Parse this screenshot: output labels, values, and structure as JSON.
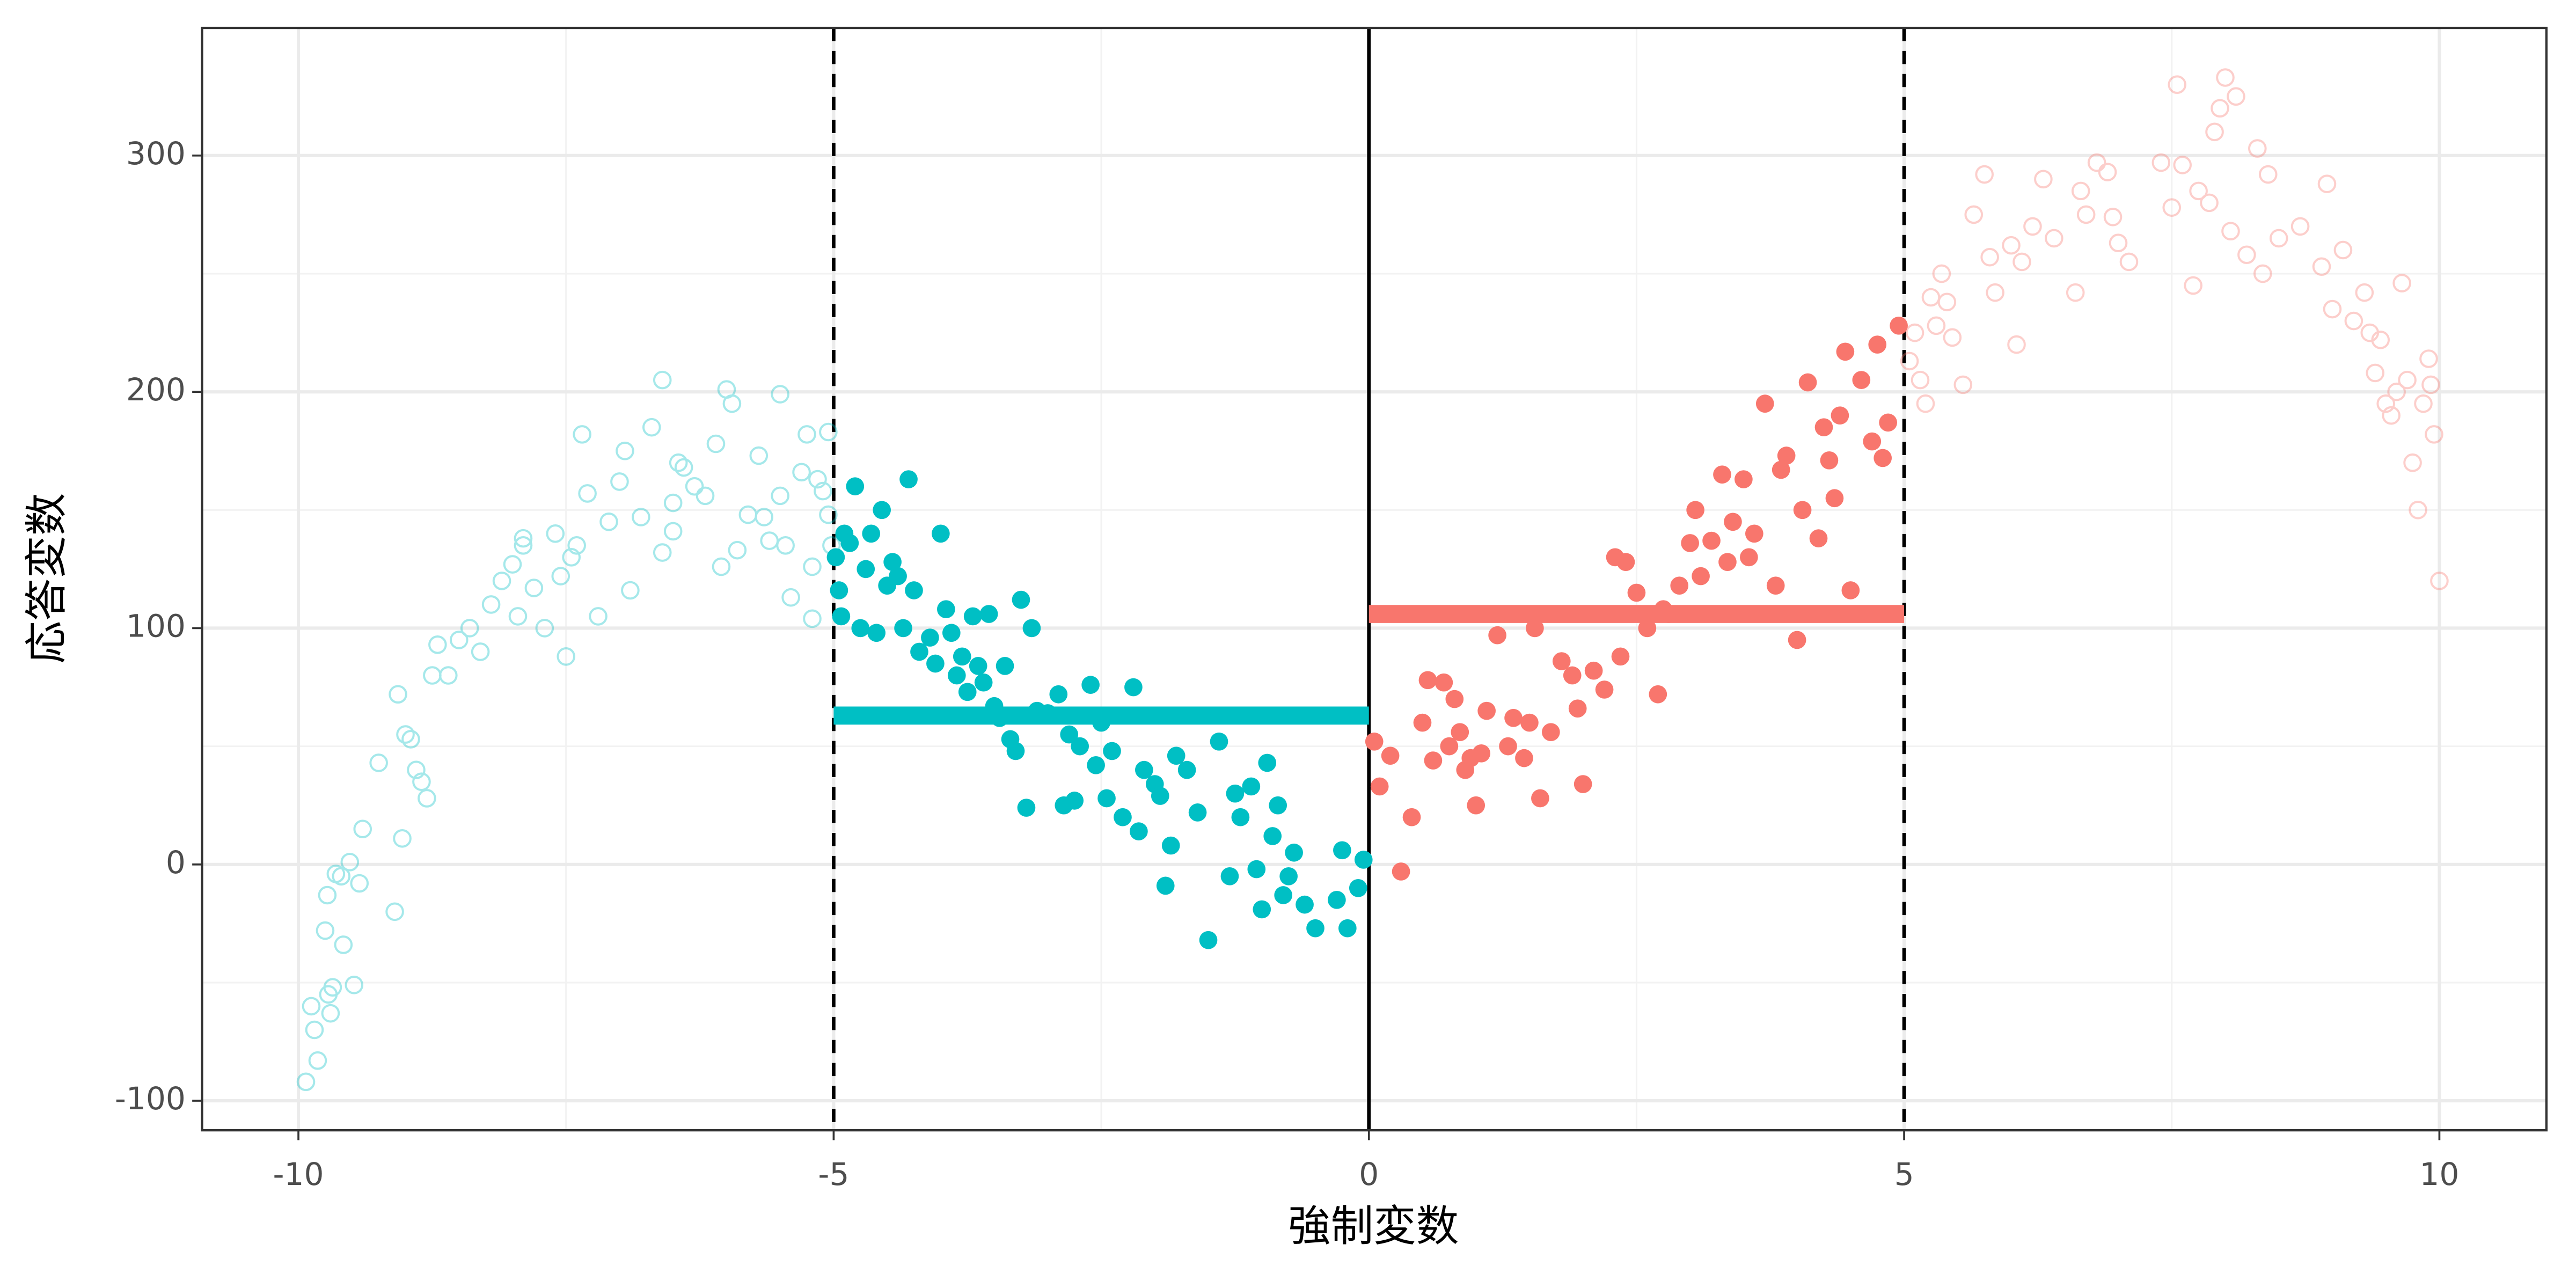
{
  "chart_data": {
    "type": "scatter",
    "x_label": "強制変数",
    "y_label": "応答変数",
    "xlim": [
      -10.9,
      11
    ],
    "ylim": [
      -112.5,
      354
    ],
    "xticks": [
      -10,
      -5,
      0,
      5,
      10
    ],
    "yticks": [
      -100,
      0,
      100,
      200,
      300
    ],
    "minor_xticks": [
      -7.5,
      -2.5,
      2.5,
      7.5
    ],
    "minor_yticks": [
      -50,
      50,
      150,
      250
    ],
    "grid": true,
    "series": [
      {
        "color": "#00BFC4",
        "marker": "open",
        "alpha": 0.35,
        "x": [
          -9.93,
          -9.88,
          -9.85,
          -9.82,
          -9.75,
          -9.73,
          -9.72,
          -9.7,
          -9.68,
          -9.65,
          -9.6,
          -9.58,
          -9.52,
          -9.48,
          -9.43,
          -9.4,
          -9.25,
          -9.1,
          -9.07,
          -9.03,
          -9.0,
          -8.95,
          -8.9,
          -8.85,
          -8.8,
          -8.75,
          -8.7,
          -8.6,
          -8.5,
          -8.4,
          -8.3,
          -8.2,
          -8.1,
          -8.0,
          -7.95,
          -7.9,
          -7.8,
          -7.7,
          -7.6,
          -7.55,
          -7.5,
          -7.45,
          -7.4,
          -7.35,
          -7.3,
          -7.2,
          -7.1,
          -7.0,
          -6.95,
          -6.9,
          -6.8,
          -6.7,
          -6.6,
          -6.5,
          -6.45,
          -6.4,
          -6.3,
          -6.2,
          -6.1,
          -6.0,
          -5.95,
          -5.9,
          -5.8,
          -5.7,
          -5.6,
          -5.5,
          -5.4,
          -5.3,
          -5.25,
          -5.2,
          -5.15,
          -5.05,
          -5.02,
          -5.5,
          -5.65,
          -5.45,
          -5.2,
          -5.1,
          -5.05,
          -6.5,
          -6.05,
          -7.9,
          -6.6
        ],
        "values": [
          -92,
          -60,
          -70,
          -83,
          -28,
          -13,
          -55,
          -63,
          -52,
          -4,
          -5,
          -34,
          1,
          -51,
          -8,
          15,
          43,
          -20,
          72,
          11,
          55,
          53,
          40,
          35,
          28,
          80,
          93,
          80,
          95,
          100,
          90,
          110,
          120,
          127,
          105,
          135,
          117,
          100,
          140,
          122,
          88,
          130,
          135,
          182,
          157,
          105,
          145,
          162,
          175,
          116,
          147,
          185,
          205,
          153,
          170,
          168,
          160,
          156,
          178,
          201,
          195,
          133,
          148,
          173,
          137,
          156,
          113,
          166,
          182,
          126,
          163,
          148,
          135,
          199,
          147,
          135,
          104,
          158,
          183,
          141,
          126,
          138,
          132
        ]
      },
      {
        "color": "#00BFC4",
        "marker": "filled",
        "alpha": 1,
        "x": [
          -4.98,
          -4.95,
          -4.93,
          -4.9,
          -4.85,
          -4.8,
          -4.75,
          -4.7,
          -4.65,
          -4.6,
          -4.55,
          -4.5,
          -4.45,
          -4.4,
          -4.35,
          -4.3,
          -4.25,
          -4.2,
          -4.1,
          -4.05,
          -4.0,
          -3.95,
          -3.9,
          -3.85,
          -3.8,
          -3.75,
          -3.7,
          -3.65,
          -3.6,
          -3.55,
          -3.5,
          -3.45,
          -3.4,
          -3.35,
          -3.3,
          -3.25,
          -3.2,
          -3.15,
          -3.1,
          -3.0,
          -2.9,
          -2.85,
          -2.8,
          -2.75,
          -2.7,
          -2.6,
          -2.55,
          -2.5,
          -2.45,
          -2.4,
          -2.3,
          -2.2,
          -2.15,
          -2.1,
          -2.0,
          -1.95,
          -1.9,
          -1.85,
          -1.8,
          -1.7,
          -1.6,
          -1.5,
          -1.4,
          -1.3,
          -1.25,
          -1.2,
          -1.1,
          -1.05,
          -1.0,
          -0.95,
          -0.9,
          -0.85,
          -0.8,
          -0.75,
          -0.7,
          -0.6,
          -0.5,
          -0.3,
          -0.25,
          -0.2,
          -0.1,
          -0.05
        ],
        "values": [
          130,
          116,
          105,
          140,
          136,
          160,
          100,
          125,
          140,
          98,
          150,
          118,
          128,
          122,
          100,
          163,
          116,
          90,
          96,
          85,
          140,
          108,
          98,
          80,
          88,
          73,
          105,
          84,
          77,
          106,
          67,
          62,
          84,
          53,
          48,
          112,
          24,
          100,
          65,
          64,
          72,
          25,
          55,
          27,
          50,
          76,
          42,
          60,
          28,
          48,
          20,
          75,
          14,
          40,
          34,
          29,
          -9,
          8,
          46,
          40,
          22,
          -32,
          52,
          -5,
          30,
          20,
          33,
          -2,
          -19,
          43,
          12,
          25,
          -13,
          -5,
          5,
          -17,
          -27,
          -15,
          6,
          -27,
          -10,
          2
        ]
      },
      {
        "color": "#F8766D",
        "marker": "filled",
        "alpha": 1,
        "x": [
          0.05,
          0.1,
          0.2,
          0.3,
          0.4,
          0.5,
          0.55,
          0.6,
          0.7,
          0.75,
          0.8,
          0.85,
          0.9,
          0.95,
          1.0,
          1.05,
          1.1,
          1.2,
          1.3,
          1.35,
          1.45,
          1.5,
          1.55,
          1.6,
          1.7,
          1.8,
          1.9,
          1.95,
          2.0,
          2.1,
          2.2,
          2.3,
          2.35,
          2.4,
          2.5,
          2.6,
          2.7,
          2.75,
          2.8,
          2.9,
          3.0,
          3.05,
          3.1,
          3.2,
          3.3,
          3.35,
          3.4,
          3.5,
          3.55,
          3.6,
          3.7,
          3.8,
          3.85,
          3.9,
          4.0,
          4.05,
          4.1,
          4.2,
          4.25,
          4.3,
          4.35,
          4.4,
          4.45,
          4.5,
          4.6,
          4.7,
          4.75,
          4.8,
          4.85,
          4.95
        ],
        "values": [
          52,
          33,
          46,
          -3,
          20,
          60,
          78,
          44,
          77,
          50,
          70,
          56,
          40,
          45,
          25,
          47,
          65,
          97,
          50,
          62,
          45,
          60,
          100,
          28,
          56,
          86,
          80,
          66,
          34,
          82,
          74,
          130,
          88,
          128,
          115,
          100,
          72,
          108,
          106,
          118,
          136,
          150,
          122,
          137,
          165,
          128,
          145,
          163,
          130,
          140,
          195,
          118,
          167,
          173,
          95,
          150,
          204,
          138,
          185,
          171,
          155,
          190,
          217,
          116,
          205,
          179,
          220,
          172,
          187,
          228
        ]
      },
      {
        "color": "#F8766D",
        "marker": "open",
        "alpha": 0.35,
        "x": [
          5.05,
          5.1,
          5.15,
          5.2,
          5.25,
          5.3,
          5.35,
          5.4,
          5.45,
          5.55,
          5.65,
          5.75,
          5.8,
          5.85,
          6.0,
          6.05,
          6.1,
          6.2,
          6.3,
          6.4,
          6.6,
          6.65,
          6.7,
          6.8,
          6.9,
          6.95,
          7.0,
          7.1,
          7.4,
          7.5,
          7.55,
          7.6,
          7.7,
          7.75,
          7.85,
          7.9,
          7.95,
          8.0,
          8.05,
          8.1,
          8.2,
          8.3,
          8.35,
          8.4,
          8.5,
          8.7,
          8.9,
          8.95,
          9.0,
          9.1,
          9.2,
          9.3,
          9.35,
          9.4,
          9.45,
          9.5,
          9.55,
          9.65,
          9.7,
          9.75,
          9.8,
          9.85,
          9.9,
          9.95,
          10.0,
          9.92,
          9.6
        ],
        "values": [
          213,
          225,
          205,
          195,
          240,
          228,
          250,
          238,
          223,
          203,
          275,
          292,
          257,
          242,
          262,
          220,
          255,
          270,
          290,
          265,
          242,
          285,
          275,
          297,
          293,
          274,
          263,
          255,
          297,
          278,
          330,
          296,
          245,
          285,
          280,
          310,
          320,
          333,
          268,
          325,
          258,
          303,
          250,
          292,
          265,
          270,
          253,
          288,
          235,
          260,
          230,
          242,
          225,
          208,
          222,
          195,
          190,
          246,
          205,
          170,
          150,
          195,
          214,
          182,
          120,
          203,
          200
        ]
      }
    ],
    "segments": [
      {
        "x": [
          -5,
          0
        ],
        "y": 63,
        "color": "#00BFC4"
      },
      {
        "x": [
          0,
          5
        ],
        "y": 106,
        "color": "#F8766D"
      }
    ],
    "vlines": [
      {
        "x": -5,
        "dashed": true
      },
      {
        "x": 0,
        "dashed": false
      },
      {
        "x": 5,
        "dashed": true
      }
    ]
  }
}
